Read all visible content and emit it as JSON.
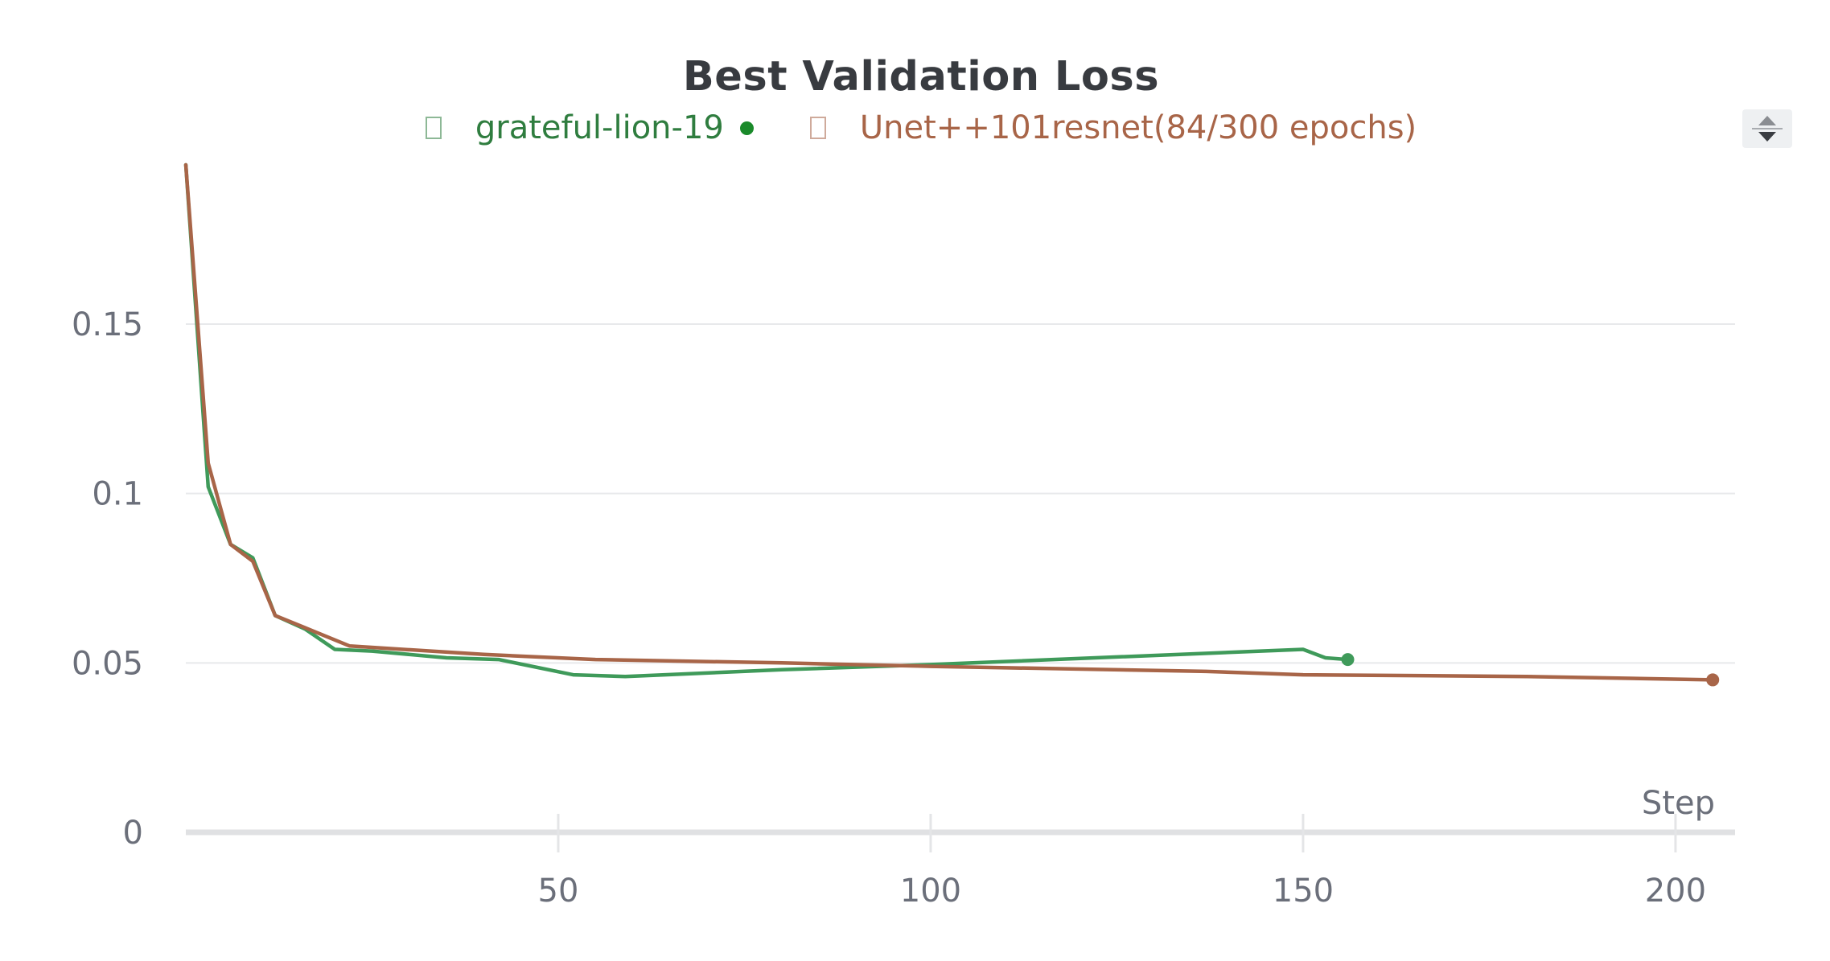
{
  "chart_data": {
    "type": "line",
    "title": "Best Validation Loss",
    "xlabel": "Step",
    "ylabel": "",
    "xlim": [
      0,
      208
    ],
    "ylim": [
      0,
      0.197
    ],
    "grid": true,
    "legend_position": "top-center",
    "x_ticks": [
      50,
      100,
      150,
      200
    ],
    "x_tick_labels": [
      "50",
      "100",
      "150",
      "200"
    ],
    "y_ticks": [
      0,
      0.05,
      0.1,
      0.15
    ],
    "y_tick_labels": [
      "0",
      "0.05",
      "0.1",
      "0.15"
    ],
    "series": [
      {
        "name": "grateful-lion-19",
        "color": "#3f9a5a",
        "legend_color": "#2f7d3f",
        "legend_dot_color": "#1a8a2a",
        "x": [
          0,
          3,
          6,
          9,
          12,
          16,
          20,
          25,
          35,
          42,
          52,
          59,
          80,
          100,
          150,
          153,
          156
        ],
        "y": [
          0.197,
          0.102,
          0.085,
          0.081,
          0.064,
          0.06,
          0.054,
          0.0535,
          0.0515,
          0.051,
          0.0465,
          0.046,
          0.048,
          0.0495,
          0.054,
          0.0515,
          0.051
        ]
      },
      {
        "name": "Unet++101resnet(84/300 epochs)",
        "color": "#a86548",
        "legend_color": "#a86548",
        "x": [
          0,
          3,
          6,
          9,
          12,
          22,
          40,
          55,
          80,
          100,
          137,
          150,
          180,
          205
        ],
        "y": [
          0.197,
          0.109,
          0.085,
          0.08,
          0.064,
          0.055,
          0.0525,
          0.051,
          0.05,
          0.049,
          0.0475,
          0.0465,
          0.046,
          0.045
        ]
      }
    ]
  },
  "legend_toggle": {
    "icon": "sort-arrows-icon"
  }
}
